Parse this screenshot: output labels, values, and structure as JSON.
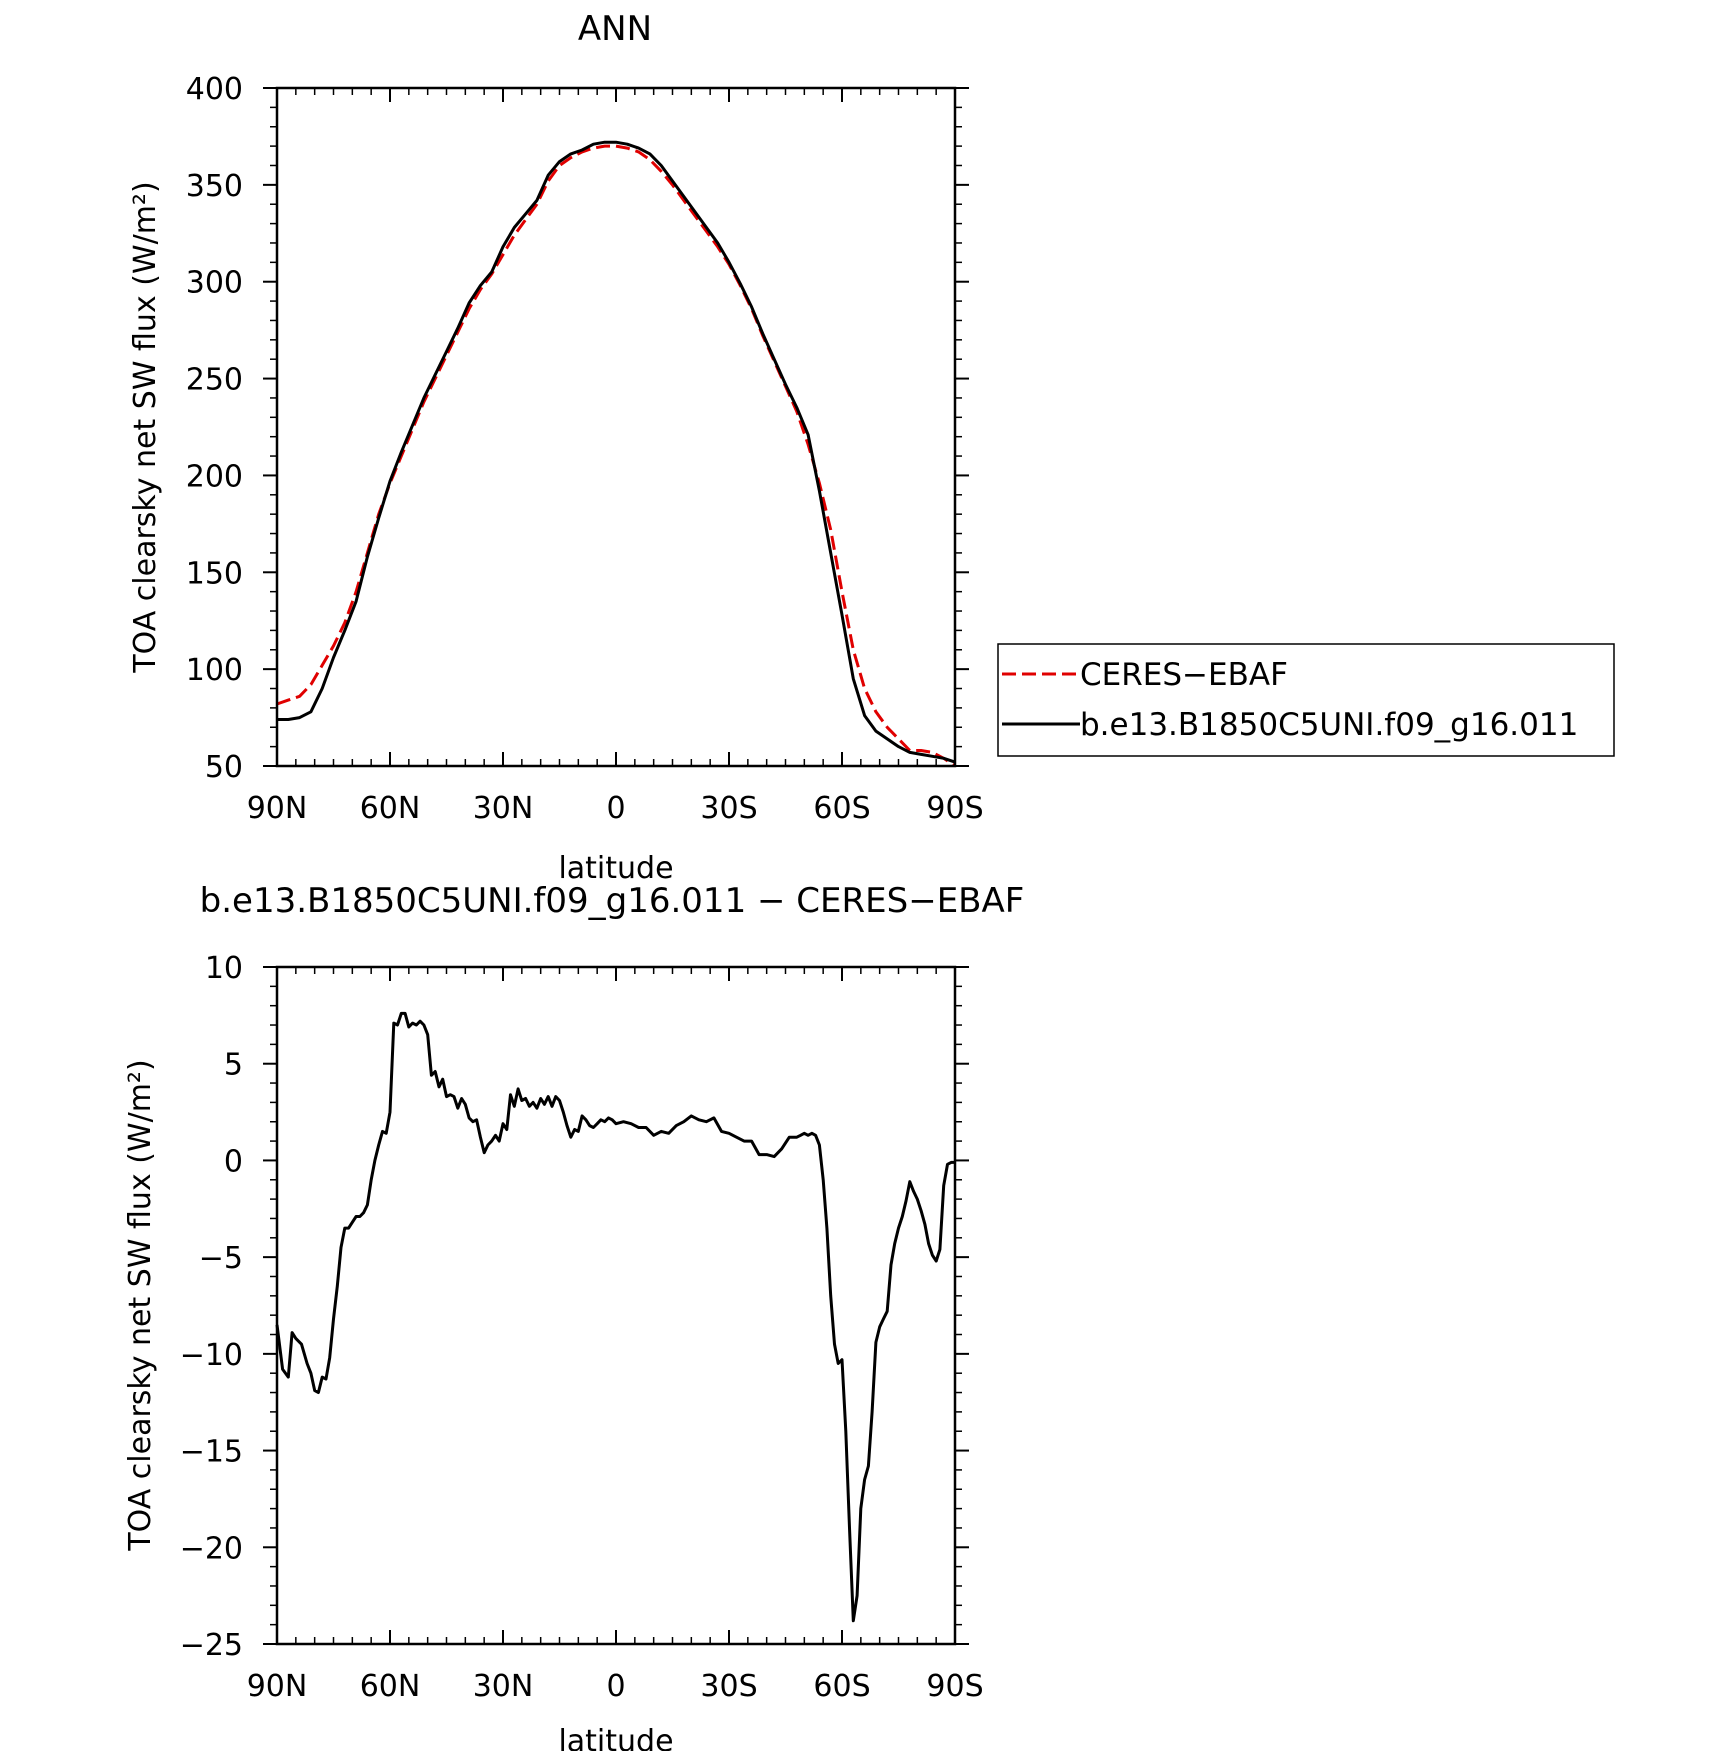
{
  "colors": {
    "ceres": "#e00000",
    "model": "#000000",
    "axis": "#000000"
  },
  "legend": {
    "entries": [
      "CERES−EBAF",
      "b.e13.B1850C5UNI.f09_g16.011"
    ]
  },
  "chart_data": [
    {
      "type": "line",
      "title": "ANN",
      "xlabel": "latitude",
      "ylabel": "TOA clearsky net SW flux (W/m²)",
      "xlim": [
        90,
        -90
      ],
      "ylim": [
        50,
        400
      ],
      "xticks": [
        {
          "v": 90,
          "label": "90N"
        },
        {
          "v": 60,
          "label": "60N"
        },
        {
          "v": 30,
          "label": "30N"
        },
        {
          "v": 0,
          "label": "0"
        },
        {
          "v": -30,
          "label": "30S"
        },
        {
          "v": -60,
          "label": "60S"
        },
        {
          "v": -90,
          "label": "90S"
        }
      ],
      "yticks": [
        {
          "v": 400,
          "label": "400"
        },
        {
          "v": 350,
          "label": "350"
        },
        {
          "v": 300,
          "label": "300"
        },
        {
          "v": 250,
          "label": "250"
        },
        {
          "v": 200,
          "label": "200"
        },
        {
          "v": 150,
          "label": "150"
        },
        {
          "v": 100,
          "label": "100"
        },
        {
          "v": 50,
          "label": "50"
        }
      ],
      "x": [
        90,
        87,
        84,
        81,
        78,
        75,
        72,
        69,
        66,
        63,
        60,
        57,
        54,
        51,
        48,
        45,
        42,
        39,
        36,
        33,
        30,
        27,
        24,
        21,
        18,
        15,
        12,
        9,
        6,
        3,
        0,
        -3,
        -6,
        -9,
        -12,
        -15,
        -18,
        -21,
        -24,
        -27,
        -30,
        -33,
        -36,
        -39,
        -42,
        -45,
        -48,
        -51,
        -54,
        -57,
        -60,
        -63,
        -66,
        -69,
        -72,
        -75,
        -78,
        -81,
        -84,
        -87,
        -90
      ],
      "series": [
        {
          "name": "CERES−EBAF",
          "style": "dashed",
          "values": [
            82,
            84,
            86,
            92,
            102,
            112,
            124,
            140,
            160,
            180,
            196,
            210,
            224,
            238,
            250,
            262,
            274,
            286,
            296,
            304,
            314,
            324,
            332,
            340,
            352,
            360,
            364,
            367,
            369,
            370,
            370,
            369,
            367,
            363,
            357,
            350,
            342,
            334,
            326,
            318,
            309,
            298,
            286,
            272,
            259,
            246,
            233,
            216,
            196,
            172,
            140,
            110,
            90,
            78,
            70,
            64,
            58,
            58,
            57,
            54,
            50
          ]
        },
        {
          "name": "b.e13.B1850C5UNI.f09_g16.011",
          "style": "solid",
          "values": [
            74,
            74,
            75,
            78,
            90,
            106,
            120,
            135,
            158,
            178,
            197,
            212,
            226,
            240,
            252,
            264,
            276,
            289,
            298,
            305,
            318,
            328,
            335,
            342,
            355,
            362,
            366,
            368,
            371,
            372,
            372,
            371,
            369,
            366,
            360,
            352,
            344,
            336,
            328,
            320,
            310,
            299,
            287,
            273,
            260,
            247,
            235,
            221,
            192,
            160,
            128,
            95,
            76,
            68,
            64,
            60,
            57,
            56,
            55,
            54,
            52
          ]
        }
      ]
    },
    {
      "type": "line",
      "title": "b.e13.B1850C5UNI.f09_g16.011 − CERES−EBAF",
      "xlabel": "latitude",
      "ylabel": "TOA clearsky net SW flux (W/m²)",
      "xlim": [
        90,
        -90
      ],
      "ylim": [
        -25,
        10
      ],
      "xticks": [
        {
          "v": 90,
          "label": "90N"
        },
        {
          "v": 60,
          "label": "60N"
        },
        {
          "v": 30,
          "label": "30N"
        },
        {
          "v": 0,
          "label": "0"
        },
        {
          "v": -30,
          "label": "30S"
        },
        {
          "v": -60,
          "label": "60S"
        },
        {
          "v": -90,
          "label": "90S"
        }
      ],
      "yticks": [
        {
          "v": 10,
          "label": "10"
        },
        {
          "v": 5,
          "label": "5"
        },
        {
          "v": 0,
          "label": "0"
        },
        {
          "v": -5,
          "label": "−5"
        },
        {
          "v": -10,
          "label": "−10"
        },
        {
          "v": -15,
          "label": "−15"
        },
        {
          "v": -20,
          "label": "−20"
        },
        {
          "v": -25,
          "label": "−25"
        }
      ],
      "x": [
        90,
        88.5,
        87,
        86,
        85,
        83.5,
        82,
        81,
        80,
        79,
        78,
        77,
        76,
        75,
        74,
        73,
        72,
        71,
        70,
        69,
        68,
        67,
        66,
        65,
        64,
        63,
        62,
        61,
        60,
        59,
        58,
        57,
        56,
        55,
        54,
        53,
        52,
        51,
        50,
        49,
        48,
        47,
        46,
        45,
        44,
        43,
        42,
        41,
        40,
        39,
        38,
        37,
        36,
        35,
        34,
        33,
        32,
        31,
        30,
        29,
        28,
        27,
        26,
        25,
        24,
        23,
        22,
        21,
        20,
        19,
        18,
        17,
        16,
        15,
        14,
        13,
        12,
        11,
        10,
        9,
        8,
        7,
        6,
        5,
        4,
        3,
        2,
        1,
        0,
        -2,
        -4,
        -6,
        -8,
        -10,
        -12,
        -14,
        -16,
        -18,
        -20,
        -22,
        -24,
        -26,
        -28,
        -30,
        -32,
        -34,
        -36,
        -38,
        -40,
        -42,
        -44,
        -46,
        -48,
        -49,
        -50,
        -51,
        -52,
        -53,
        -54,
        -55,
        -56,
        -57,
        -58,
        -59,
        -60,
        -61,
        -62,
        -63,
        -64,
        -65,
        -66,
        -67,
        -68,
        -69,
        -70,
        -71,
        -72,
        -73,
        -74,
        -75,
        -76,
        -77,
        -78,
        -79,
        -80,
        -81,
        -82,
        -83,
        -84,
        -85,
        -86,
        -87,
        -88,
        -89,
        -90
      ],
      "series": [
        {
          "name": "b.e13.B1850C5UNI.f09_g16.011 − CERES−EBAF",
          "style": "solid",
          "values": [
            -8.5,
            -10.8,
            -11.2,
            -8.9,
            -9.2,
            -9.5,
            -10.5,
            -11.0,
            -11.9,
            -12.0,
            -11.2,
            -11.3,
            -10.2,
            -8.2,
            -6.5,
            -4.5,
            -3.5,
            -3.5,
            -3.2,
            -2.9,
            -2.9,
            -2.7,
            -2.3,
            -1.0,
            0.0,
            0.8,
            1.5,
            1.4,
            2.5,
            7.1,
            7.0,
            7.6,
            7.6,
            6.9,
            7.1,
            7.0,
            7.2,
            7.0,
            6.5,
            4.4,
            4.6,
            3.8,
            4.2,
            3.3,
            3.4,
            3.3,
            2.7,
            3.2,
            2.9,
            2.2,
            2.0,
            2.1,
            1.2,
            0.4,
            0.8,
            1.0,
            1.3,
            1.0,
            1.9,
            1.6,
            3.4,
            2.8,
            3.7,
            3.1,
            3.2,
            2.8,
            3.0,
            2.7,
            3.2,
            2.9,
            3.3,
            2.8,
            3.3,
            3.1,
            2.5,
            1.8,
            1.2,
            1.6,
            1.5,
            2.3,
            2.1,
            1.8,
            1.7,
            1.9,
            2.1,
            2.0,
            2.2,
            2.1,
            1.9,
            2.0,
            1.9,
            1.7,
            1.7,
            1.3,
            1.5,
            1.4,
            1.8,
            2.0,
            2.3,
            2.1,
            2.0,
            2.2,
            1.5,
            1.4,
            1.2,
            1.0,
            1.0,
            0.3,
            0.3,
            0.2,
            0.6,
            1.2,
            1.2,
            1.3,
            1.4,
            1.3,
            1.4,
            1.3,
            0.8,
            -1.0,
            -3.5,
            -7.0,
            -9.5,
            -10.5,
            -10.3,
            -14.0,
            -19.0,
            -23.8,
            -22.5,
            -18.0,
            -16.5,
            -15.8,
            -13.0,
            -9.4,
            -8.6,
            -8.2,
            -7.8,
            -5.4,
            -4.3,
            -3.5,
            -2.9,
            -2.1,
            -1.1,
            -1.6,
            -2.0,
            -2.6,
            -3.3,
            -4.3,
            -4.9,
            -5.2,
            -4.6,
            -1.3,
            -0.2,
            -0.1,
            -0.1
          ]
        }
      ]
    }
  ]
}
